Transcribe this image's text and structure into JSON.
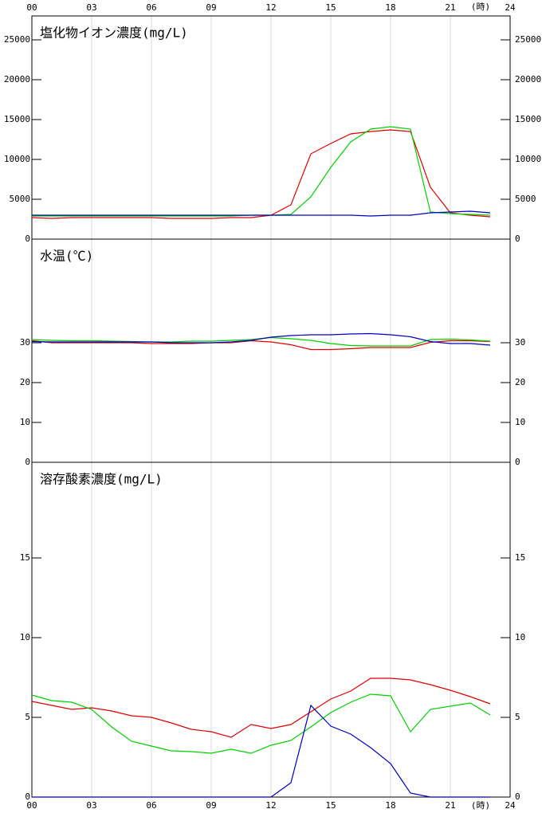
{
  "chart_data": {
    "type": "line",
    "xlabel": "(時)",
    "x": [
      0,
      1,
      2,
      3,
      4,
      5,
      6,
      7,
      8,
      9,
      10,
      11,
      12,
      13,
      14,
      15,
      16,
      17,
      18,
      19,
      20,
      21,
      22,
      23
    ],
    "xlim": [
      0,
      24
    ],
    "xticks": [
      {
        "value": 0,
        "label": "00"
      },
      {
        "value": 3,
        "label": "03"
      },
      {
        "value": 6,
        "label": "06"
      },
      {
        "value": 9,
        "label": "09"
      },
      12,
      15,
      18,
      21,
      24
    ],
    "grid": true,
    "panels": [
      {
        "title": "塩化物イオン濃度(mg/L)",
        "ylim": [
          0,
          28000
        ],
        "yticks": [
          0,
          5000,
          10000,
          15000,
          20000,
          25000
        ],
        "series": [
          {
            "color": "#e00000",
            "values": [
              2700,
              2600,
              2700,
              2700,
              2700,
              2700,
              2700,
              2600,
              2600,
              2600,
              2700,
              2700,
              3000,
              4300,
              10700,
              12000,
              13200,
              13500,
              13700,
              13500,
              6500,
              3300,
              3000,
              2800
            ]
          },
          {
            "color": "#00d000",
            "values": [
              2900,
              2900,
              2900,
              2900,
              2900,
              2900,
              2900,
              2900,
              2900,
              2900,
              2900,
              3000,
              3000,
              3100,
              5300,
              9000,
              12200,
              13800,
              14100,
              13800,
              3400,
              3200,
              3100,
              3000
            ]
          },
          {
            "color": "#0000c0",
            "values": [
              3000,
              3000,
              3000,
              3000,
              3000,
              3000,
              3000,
              3000,
              3000,
              3000,
              3000,
              3000,
              3000,
              3000,
              3000,
              3000,
              3000,
              2900,
              3000,
              3000,
              3300,
              3400,
              3500,
              3300
            ]
          }
        ]
      },
      {
        "title": "水温(℃)",
        "ylim": [
          0,
          56
        ],
        "yticks": [
          0,
          10,
          20,
          30
        ],
        "series": [
          {
            "color": "#e00000",
            "values": [
              30.5,
              30,
              30,
              30,
              30,
              30,
              29.8,
              29.8,
              29.8,
              30,
              30,
              30.5,
              30.2,
              29.5,
              28.3,
              28.3,
              28.5,
              28.8,
              28.8,
              28.8,
              30.1,
              30.5,
              30.5,
              30.3
            ]
          },
          {
            "color": "#00d000",
            "values": [
              30.8,
              30.6,
              30.5,
              30.5,
              30.4,
              30.3,
              30.2,
              30.2,
              30.4,
              30.4,
              30.6,
              30.8,
              31.3,
              31,
              30.6,
              29.8,
              29.3,
              29.2,
              29.2,
              29.2,
              30.8,
              30.9,
              30.7,
              30.4
            ]
          },
          {
            "color": "#0000c0",
            "values": [
              30.3,
              30.2,
              30.2,
              30.2,
              30.2,
              30.2,
              30.2,
              30,
              30,
              30,
              30.2,
              30.6,
              31.4,
              31.8,
              32,
              32,
              32.2,
              32.3,
              32,
              31.5,
              30.3,
              29.8,
              29.8,
              29.4
            ]
          }
        ]
      },
      {
        "title": "溶存酸素濃度(mg/L)",
        "ylim": [
          0,
          21
        ],
        "yticks": [
          0,
          5,
          10,
          15
        ],
        "series": [
          {
            "color": "#e00000",
            "values": [
              6.0,
              5.75,
              5.5,
              5.6,
              5.4,
              5.1,
              5.0,
              4.65,
              4.25,
              4.1,
              3.75,
              4.55,
              4.3,
              4.55,
              5.35,
              6.15,
              6.65,
              7.45,
              7.45,
              7.35,
              7.05,
              6.7,
              6.3,
              5.85
            ]
          },
          {
            "color": "#00d000",
            "values": [
              6.4,
              6.05,
              5.95,
              5.5,
              4.4,
              3.5,
              3.2,
              2.9,
              2.85,
              2.75,
              3.0,
              2.75,
              3.25,
              3.55,
              4.4,
              5.3,
              5.95,
              6.45,
              6.35,
              4.1,
              5.5,
              5.7,
              5.9,
              5.15
            ]
          },
          {
            "color": "#0000c0",
            "values": [
              0,
              0,
              0,
              0,
              0,
              0,
              0,
              0,
              0,
              0,
              0,
              0,
              0,
              0.9,
              5.75,
              4.45,
              3.95,
              3.1,
              2.1,
              0.25,
              0,
              0,
              0,
              0
            ]
          }
        ]
      }
    ]
  }
}
